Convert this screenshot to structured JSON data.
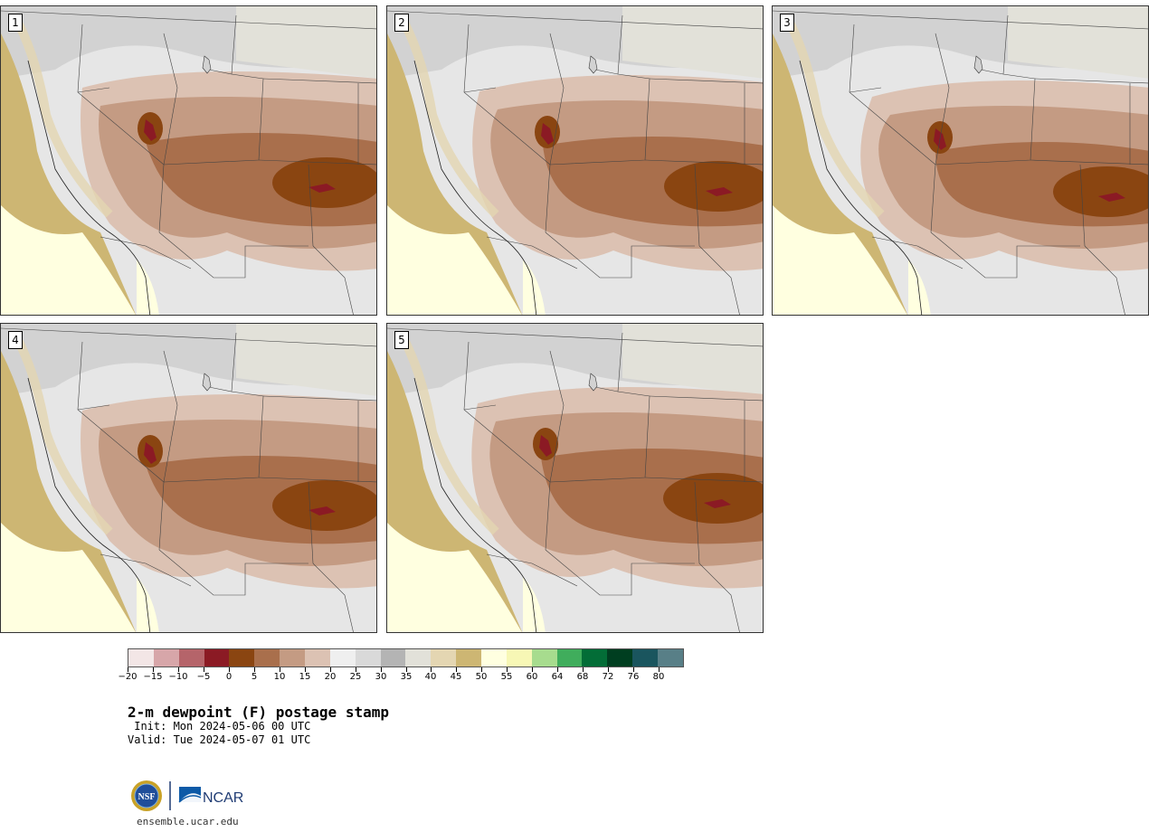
{
  "panels": [
    {
      "label": "1"
    },
    {
      "label": "2"
    },
    {
      "label": "3"
    },
    {
      "label": "4"
    },
    {
      "label": "5"
    }
  ],
  "colorbar": {
    "colors": [
      "#f3e6e6",
      "#d7a6a9",
      "#b5646a",
      "#8b1a24",
      "#8a4511",
      "#a96f4c",
      "#c49b83",
      "#dcc2b3",
      "#efefef",
      "#d9d9d9",
      "#b4b4b4",
      "#e2e1d9",
      "#e4d6b2",
      "#cdb673",
      "#ffffe0",
      "#f7f7b5",
      "#a7dc8e",
      "#40ad5c",
      "#036d37",
      "#003e20",
      "#1a555e",
      "#587f87"
    ],
    "ticks": [
      "-20",
      "-15",
      "-10",
      "-5",
      "0",
      "5",
      "10",
      "15",
      "20",
      "25",
      "30",
      "35",
      "40",
      "45",
      "50",
      "55",
      "60",
      "64",
      "68",
      "72",
      "76",
      "80"
    ]
  },
  "title": "2-m dewpoint (F) postage stamp",
  "init": " Init: Mon 2024-05-06 00 UTC",
  "valid": "Valid: Tue 2024-05-07 01 UTC",
  "logos": {
    "nsf": "NSF",
    "ncar": "NCAR"
  },
  "site": "ensemble.ucar.edu"
}
